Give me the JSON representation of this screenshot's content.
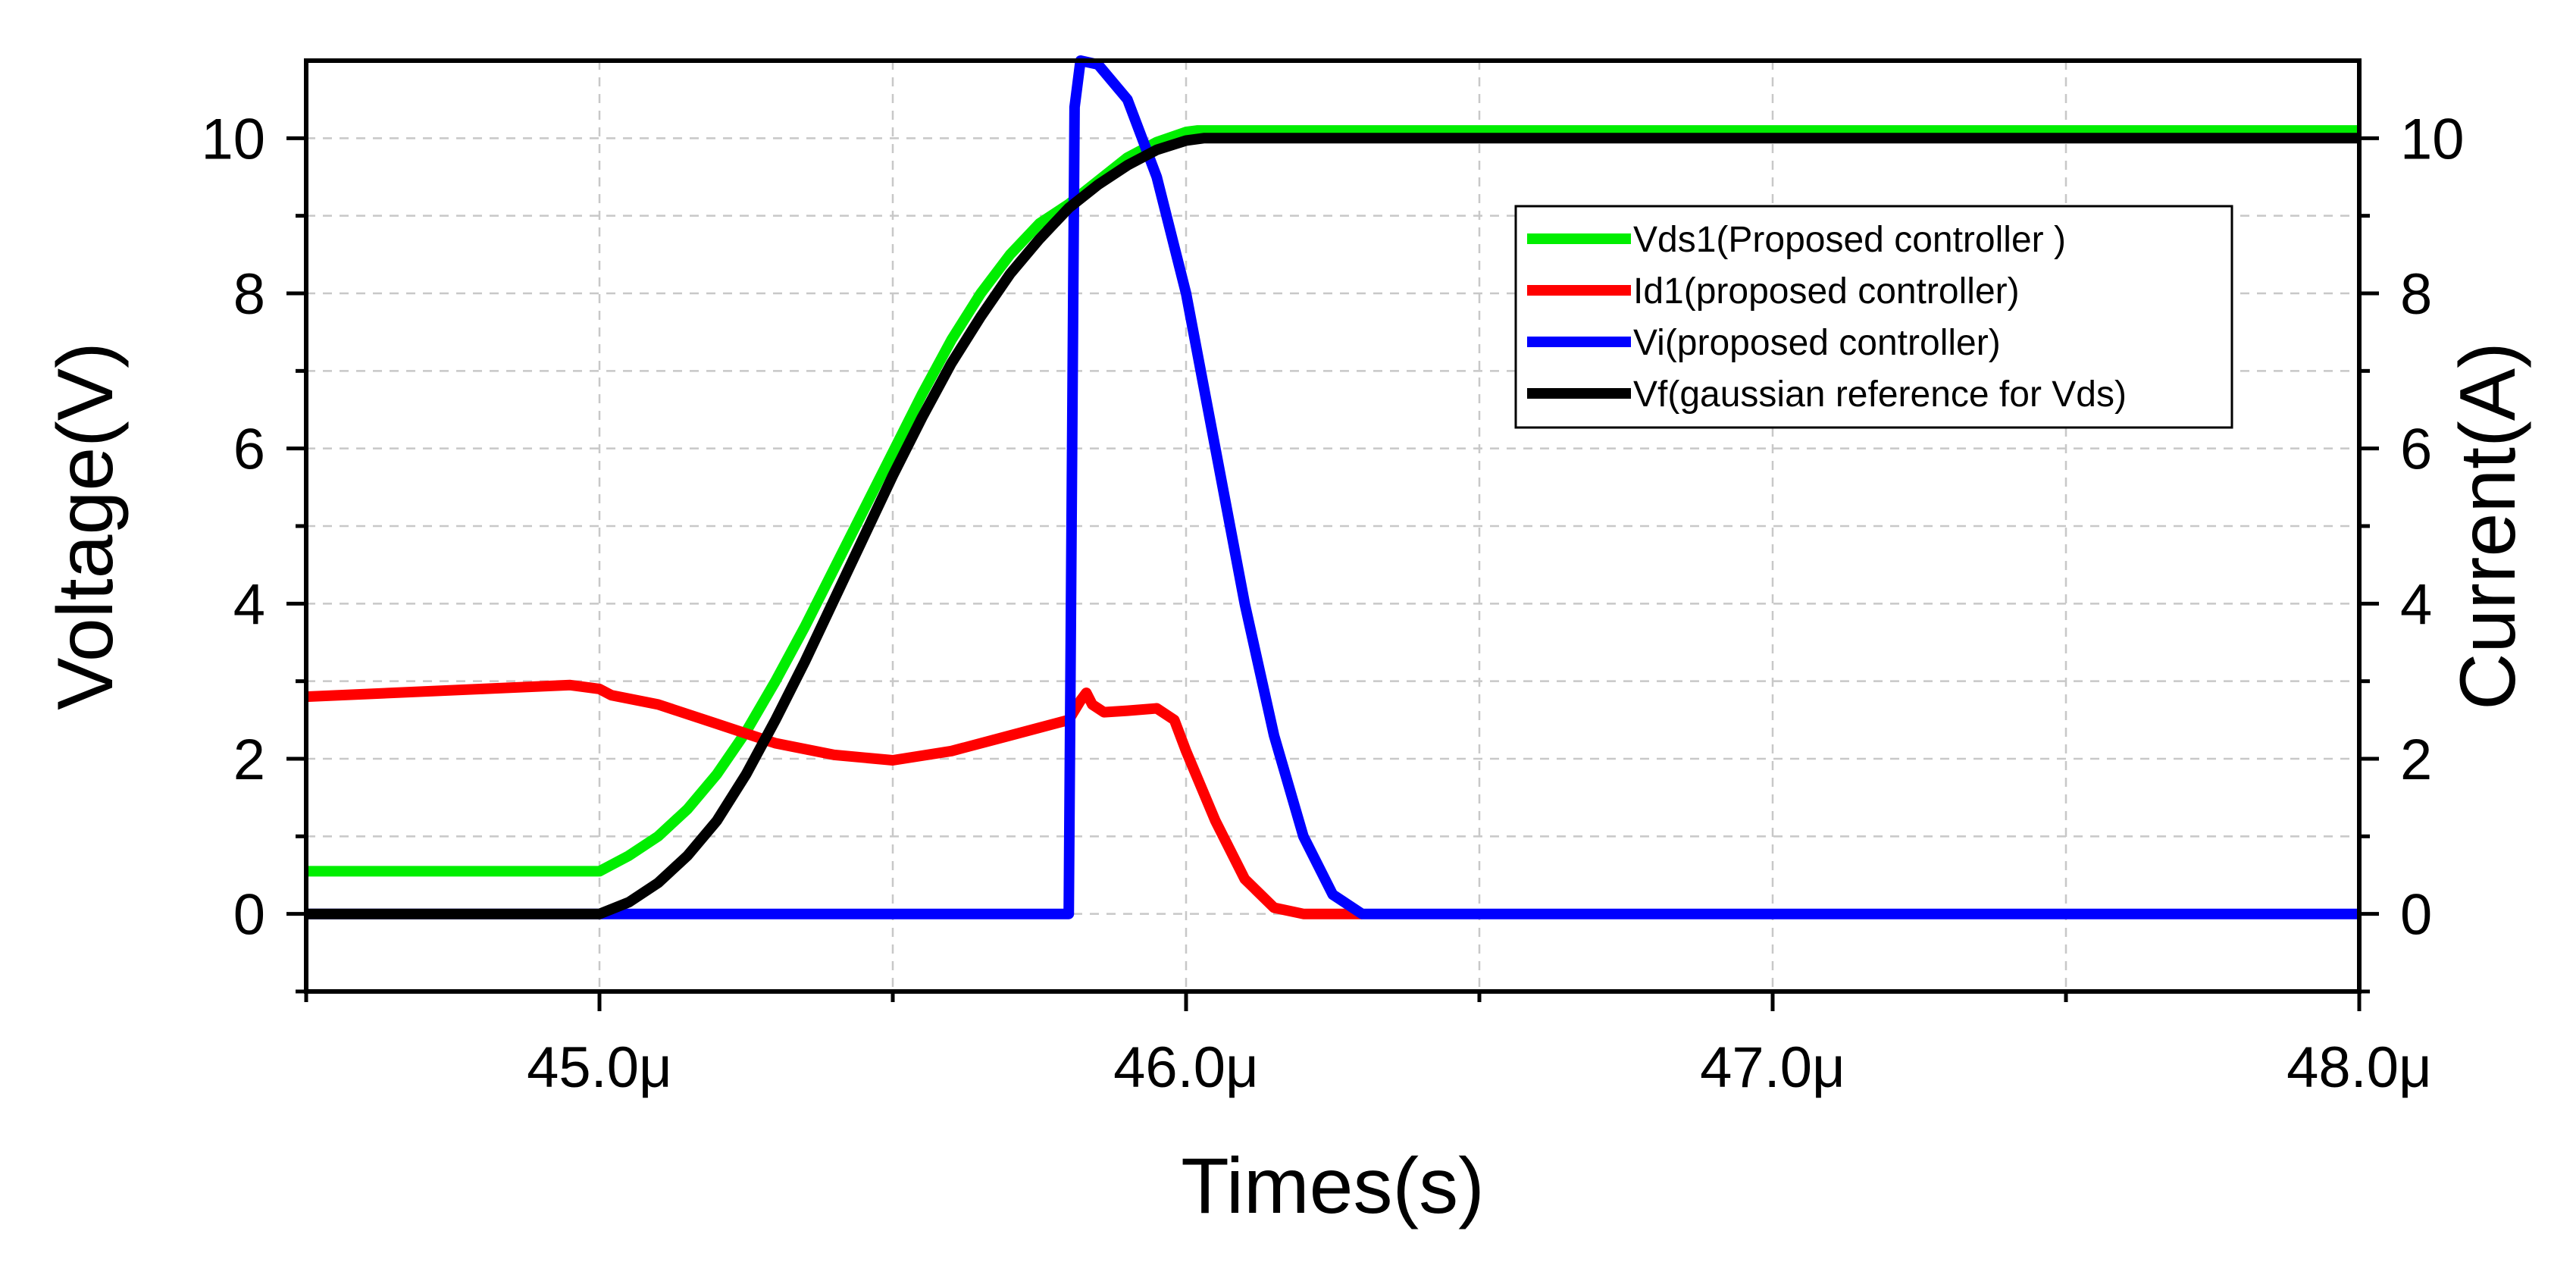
{
  "chart_data": {
    "type": "line",
    "x_unit": "μs",
    "xlabel": "Times(s)",
    "ylabel_left": "Voltage(V)",
    "ylabel_right": "Current(A)",
    "xlim": [
      44.5,
      48.0
    ],
    "ylim": [
      -1,
      11
    ],
    "x_ticks": [
      {
        "value": 45.0,
        "label": "45.0μ"
      },
      {
        "value": 46.0,
        "label": "46.0μ"
      },
      {
        "value": 47.0,
        "label": "47.0μ"
      },
      {
        "value": 48.0,
        "label": "48.0μ"
      }
    ],
    "y_ticks": [
      {
        "value": 0,
        "label": "0"
      },
      {
        "value": 2,
        "label": "2"
      },
      {
        "value": 4,
        "label": "4"
      },
      {
        "value": 6,
        "label": "6"
      },
      {
        "value": 8,
        "label": "8"
      },
      {
        "value": 10,
        "label": "10"
      }
    ],
    "grid": true,
    "legend_position": "top-right",
    "series": [
      {
        "name": "Vds1(Proposed controller )",
        "color": "#00ee00",
        "x": [
          44.5,
          45.0,
          45.05,
          45.1,
          45.15,
          45.2,
          45.25,
          45.3,
          45.35,
          45.4,
          45.45,
          45.5,
          45.55,
          45.6,
          45.65,
          45.7,
          45.75,
          45.8,
          45.85,
          45.9,
          45.95,
          46.0,
          46.02,
          48.0
        ],
        "y": [
          0.55,
          0.55,
          0.75,
          1.0,
          1.35,
          1.8,
          2.35,
          3.0,
          3.7,
          4.45,
          5.2,
          5.95,
          6.7,
          7.4,
          8.0,
          8.5,
          8.9,
          9.15,
          9.45,
          9.75,
          9.95,
          10.08,
          10.1,
          10.1
        ]
      },
      {
        "name": "Id1(proposed controller)",
        "color": "#ff0000",
        "x": [
          44.5,
          44.8,
          44.95,
          45.0,
          45.02,
          45.1,
          45.2,
          45.3,
          45.4,
          45.5,
          45.6,
          45.7,
          45.8,
          45.82,
          45.83,
          45.84,
          45.86,
          45.9,
          45.95,
          45.98,
          46.0,
          46.05,
          46.1,
          46.15,
          46.2,
          46.3
        ],
        "y": [
          2.8,
          2.9,
          2.95,
          2.9,
          2.82,
          2.7,
          2.45,
          2.2,
          2.05,
          1.98,
          2.1,
          2.3,
          2.5,
          2.75,
          2.85,
          2.7,
          2.6,
          2.62,
          2.65,
          2.5,
          2.1,
          1.2,
          0.45,
          0.08,
          0.0,
          0.0
        ]
      },
      {
        "name": "Vi(proposed controller)",
        "color": "#0000ff",
        "x": [
          44.5,
          45.0,
          45.8,
          45.81,
          45.82,
          45.85,
          45.9,
          45.95,
          46.0,
          46.05,
          46.1,
          46.15,
          46.2,
          46.25,
          46.3,
          48.0
        ],
        "y": [
          0,
          0,
          0,
          10.4,
          11.0,
          10.95,
          10.5,
          9.5,
          8.0,
          6.0,
          4.0,
          2.3,
          1.0,
          0.25,
          0.0,
          0.0
        ]
      },
      {
        "name": "Vf(gaussian reference for Vds)",
        "color": "#000000",
        "x": [
          44.5,
          45.0,
          45.05,
          45.1,
          45.15,
          45.2,
          45.25,
          45.3,
          45.35,
          45.4,
          45.45,
          45.5,
          45.55,
          45.6,
          45.65,
          45.7,
          45.75,
          45.8,
          45.85,
          45.9,
          45.95,
          46.0,
          46.03,
          48.0
        ],
        "y": [
          0,
          0,
          0.15,
          0.4,
          0.75,
          1.2,
          1.8,
          2.5,
          3.25,
          4.05,
          4.85,
          5.65,
          6.4,
          7.1,
          7.7,
          8.25,
          8.7,
          9.1,
          9.4,
          9.65,
          9.85,
          9.97,
          10.0,
          10.0
        ]
      }
    ]
  }
}
